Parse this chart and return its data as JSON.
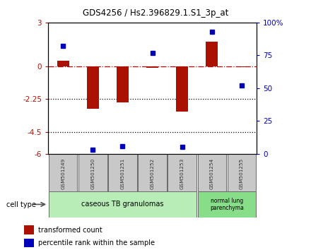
{
  "title": "GDS4256 / Hs2.396829.1.S1_3p_at",
  "samples": [
    "GSM501249",
    "GSM501250",
    "GSM501251",
    "GSM501252",
    "GSM501253",
    "GSM501254",
    "GSM501255"
  ],
  "red_values": [
    0.4,
    -2.9,
    -2.5,
    -0.1,
    -3.1,
    1.7,
    -0.05
  ],
  "blue_values": [
    82,
    3,
    6,
    77,
    5,
    93,
    52
  ],
  "ylim_left": [
    -6,
    3
  ],
  "ylim_right": [
    0,
    100
  ],
  "yticks_left": [
    -6,
    -4.5,
    -2.25,
    0,
    3
  ],
  "yticks_right": [
    0,
    25,
    50,
    75,
    100
  ],
  "ytick_labels_left": [
    "-6",
    "-4.5",
    "-2.25",
    "0",
    "3"
  ],
  "ytick_labels_right": [
    "0",
    "25",
    "50",
    "75",
    "100%"
  ],
  "hlines": [
    0,
    -2.25,
    -4.5
  ],
  "hline_styles": [
    "dashdot",
    "dotted",
    "dotted"
  ],
  "hline_colors": [
    "#cc0000",
    "black",
    "black"
  ],
  "red_color": "#aa1100",
  "blue_color": "#0000bb",
  "bar_width": 0.4,
  "blue_marker_size": 5,
  "legend_red": "transformed count",
  "legend_blue": "percentile rank within the sample",
  "cell_type_label": "cell type",
  "background_color": "#ffffff",
  "sample_box_color": "#c8c8c8",
  "sample_text_color": "#333333",
  "group1_color": "#b8edb8",
  "group2_color": "#88dd88",
  "group1_label": "caseous TB granulomas",
  "group2_label": "normal lung\nparenchyma"
}
